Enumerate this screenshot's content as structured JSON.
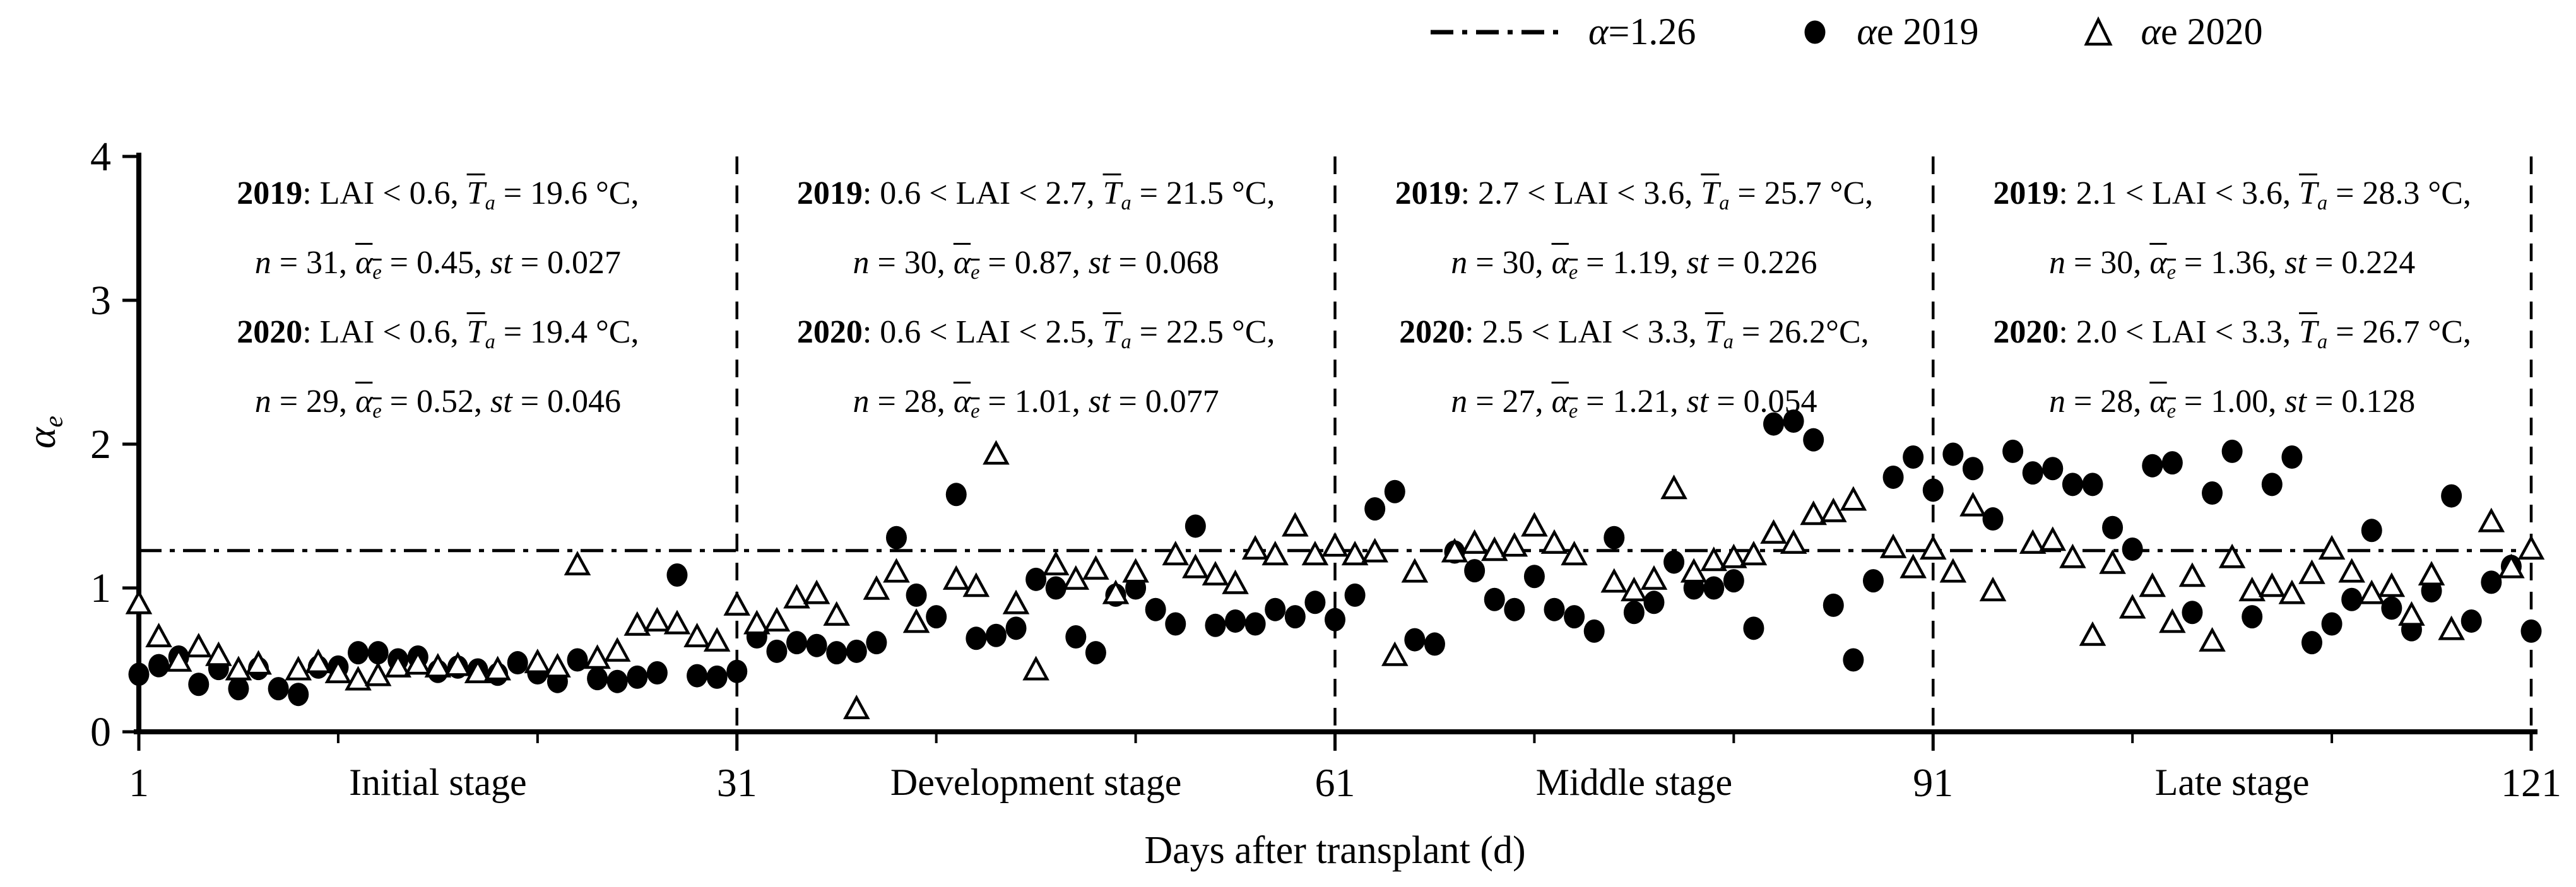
{
  "legend": {
    "items": [
      {
        "label": "α=1.26",
        "marker": "dash-dot-line"
      },
      {
        "label": "αe 2019",
        "marker": "filled-circle"
      },
      {
        "label": "αe 2020",
        "marker": "open-triangle"
      }
    ]
  },
  "axis": {
    "y_label_main": "α",
    "y_label_sub": "e",
    "x_label": "Days after transplant (d)"
  },
  "symbols": {
    "n": "n",
    "st": "st",
    "T": "T",
    "T_sub": "a",
    "alpha": "α",
    "alpha_sub": "e"
  },
  "annotations": [
    {
      "stage_label": "Initial stage",
      "y2019": {
        "year": "2019",
        "cond": "LAI < 0.6,",
        "ta": "19.6 °C,",
        "n": "31",
        "ae": "0.45",
        "st": "0.027"
      },
      "y2020": {
        "year": "2020",
        "cond": "LAI < 0.6,",
        "ta": "19.4 °C,",
        "n": "29",
        "ae": "0.52",
        "st": "0.046"
      }
    },
    {
      "stage_label": "Development stage",
      "y2019": {
        "year": "2019",
        "cond": "0.6 < LAI < 2.7,",
        "ta": "21.5 °C,",
        "n": "30",
        "ae": "0.87",
        "st": "0.068"
      },
      "y2020": {
        "year": "2020",
        "cond": "0.6 < LAI < 2.5,",
        "ta": "22.5 °C,",
        "n": "28",
        "ae": "1.01",
        "st": "0.077"
      }
    },
    {
      "stage_label": "Middle stage",
      "y2019": {
        "year": "2019",
        "cond": "2.7 < LAI < 3.6,",
        "ta": "25.7 °C,",
        "n": "30",
        "ae": "1.19",
        "st": "0.226"
      },
      "y2020": {
        "year": "2020",
        "cond": "2.5 < LAI < 3.3,",
        "ta": "26.2°C,",
        "n": "27",
        "ae": "1.21",
        "st": "0.054"
      }
    },
    {
      "stage_label": "Late stage",
      "y2019": {
        "year": "2019",
        "cond": "2.1 < LAI < 3.6,",
        "ta": "28.3 °C,",
        "n": "30",
        "ae": "1.36",
        "st": "0.224"
      },
      "y2020": {
        "year": "2020",
        "cond": "2.0 < LAI < 3.3,",
        "ta": "26.7 °C,",
        "n": "28",
        "ae": "1.00",
        "st": "0.128"
      }
    }
  ],
  "chart_data": {
    "type": "scatter",
    "title": "",
    "xlabel": "Days after transplant (d)",
    "ylabel": "αe",
    "xlim": [
      1,
      121
    ],
    "ylim": [
      0,
      4
    ],
    "x_ticks": [
      1,
      31,
      61,
      91,
      121
    ],
    "x_minor_ticks": [
      11,
      21,
      41,
      51,
      71,
      81,
      101,
      111
    ],
    "y_ticks": [
      0,
      1,
      2,
      3,
      4
    ],
    "grid": false,
    "legend_position": "top-right",
    "ref_line": {
      "value": 1.26,
      "style": "dash-dot",
      "label": "α=1.26"
    },
    "stage_boundaries": [
      31,
      61,
      91,
      121
    ],
    "stages": [
      {
        "name": "Initial stage",
        "center_day": 16
      },
      {
        "name": "Development stage",
        "center_day": 46
      },
      {
        "name": "Middle stage",
        "center_day": 76
      },
      {
        "name": "Late stage",
        "center_day": 106
      }
    ],
    "series": [
      {
        "name": "αe 2019",
        "marker": "filled-circle",
        "points": [
          [
            1,
            0.4
          ],
          [
            2,
            0.46
          ],
          [
            3,
            0.52
          ],
          [
            4,
            0.33
          ],
          [
            5,
            0.44
          ],
          [
            6,
            0.3
          ],
          [
            7,
            0.44
          ],
          [
            8,
            0.3
          ],
          [
            9,
            0.26
          ],
          [
            10,
            0.45
          ],
          [
            11,
            0.45
          ],
          [
            12,
            0.55
          ],
          [
            13,
            0.55
          ],
          [
            14,
            0.5
          ],
          [
            15,
            0.52
          ],
          [
            16,
            0.42
          ],
          [
            17,
            0.45
          ],
          [
            18,
            0.43
          ],
          [
            19,
            0.4
          ],
          [
            20,
            0.48
          ],
          [
            21,
            0.41
          ],
          [
            22,
            0.35
          ],
          [
            23,
            0.5
          ],
          [
            24,
            0.37
          ],
          [
            25,
            0.35
          ],
          [
            26,
            0.38
          ],
          [
            27,
            0.41
          ],
          [
            28,
            1.09
          ],
          [
            29,
            0.39
          ],
          [
            30,
            0.38
          ],
          [
            31,
            0.42
          ],
          [
            32,
            0.66
          ],
          [
            33,
            0.56
          ],
          [
            34,
            0.62
          ],
          [
            35,
            0.6
          ],
          [
            36,
            0.55
          ],
          [
            37,
            0.56
          ],
          [
            38,
            0.62
          ],
          [
            39,
            1.35
          ],
          [
            40,
            0.95
          ],
          [
            41,
            0.8
          ],
          [
            42,
            1.65
          ],
          [
            43,
            0.65
          ],
          [
            44,
            0.67
          ],
          [
            45,
            0.72
          ],
          [
            46,
            1.06
          ],
          [
            47,
            1.0
          ],
          [
            48,
            0.66
          ],
          [
            49,
            0.55
          ],
          [
            50,
            0.95
          ],
          [
            51,
            1.0
          ],
          [
            52,
            0.85
          ],
          [
            53,
            0.75
          ],
          [
            54,
            1.43
          ],
          [
            55,
            0.74
          ],
          [
            56,
            0.77
          ],
          [
            57,
            0.75
          ],
          [
            58,
            0.85
          ],
          [
            59,
            0.8
          ],
          [
            60,
            0.9
          ],
          [
            61,
            0.78
          ],
          [
            62,
            0.95
          ],
          [
            63,
            1.55
          ],
          [
            64,
            1.67
          ],
          [
            65,
            0.64
          ],
          [
            66,
            0.61
          ],
          [
            67,
            1.25
          ],
          [
            68,
            1.12
          ],
          [
            69,
            0.92
          ],
          [
            70,
            0.85
          ],
          [
            71,
            1.08
          ],
          [
            72,
            0.85
          ],
          [
            73,
            0.8
          ],
          [
            74,
            0.7
          ],
          [
            75,
            1.35
          ],
          [
            76,
            0.83
          ],
          [
            77,
            0.9
          ],
          [
            78,
            1.18
          ],
          [
            79,
            1.0
          ],
          [
            80,
            1.0
          ],
          [
            81,
            1.05
          ],
          [
            82,
            0.72
          ],
          [
            83,
            2.14
          ],
          [
            84,
            2.16
          ],
          [
            85,
            2.03
          ],
          [
            86,
            0.88
          ],
          [
            87,
            0.5
          ],
          [
            88,
            1.05
          ],
          [
            89,
            1.77
          ],
          [
            90,
            1.91
          ],
          [
            91,
            1.68
          ],
          [
            92,
            1.93
          ],
          [
            93,
            1.83
          ],
          [
            94,
            1.48
          ],
          [
            95,
            1.95
          ],
          [
            96,
            1.8
          ],
          [
            97,
            1.83
          ],
          [
            98,
            1.72
          ],
          [
            99,
            1.72
          ],
          [
            100,
            1.42
          ],
          [
            101,
            1.27
          ],
          [
            102,
            1.85
          ],
          [
            103,
            1.87
          ],
          [
            104,
            0.83
          ],
          [
            105,
            1.66
          ],
          [
            106,
            1.95
          ],
          [
            107,
            0.8
          ],
          [
            108,
            1.72
          ],
          [
            109,
            1.91
          ],
          [
            110,
            0.62
          ],
          [
            111,
            0.75
          ],
          [
            112,
            0.92
          ],
          [
            113,
            1.4
          ],
          [
            114,
            0.86
          ],
          [
            115,
            0.71
          ],
          [
            116,
            0.98
          ],
          [
            117,
            1.64
          ],
          [
            118,
            0.77
          ],
          [
            119,
            1.04
          ],
          [
            120,
            1.15
          ],
          [
            121,
            0.7
          ]
        ]
      },
      {
        "name": "αe 2020",
        "marker": "open-triangle",
        "points": [
          [
            1,
            0.88
          ],
          [
            2,
            0.65
          ],
          [
            3,
            0.48
          ],
          [
            4,
            0.58
          ],
          [
            5,
            0.52
          ],
          [
            6,
            0.42
          ],
          [
            7,
            0.46
          ],
          [
            9,
            0.42
          ],
          [
            10,
            0.47
          ],
          [
            11,
            0.4
          ],
          [
            12,
            0.35
          ],
          [
            13,
            0.38
          ],
          [
            14,
            0.44
          ],
          [
            15,
            0.46
          ],
          [
            16,
            0.44
          ],
          [
            17,
            0.45
          ],
          [
            18,
            0.4
          ],
          [
            19,
            0.42
          ],
          [
            21,
            0.47
          ],
          [
            22,
            0.44
          ],
          [
            23,
            1.15
          ],
          [
            24,
            0.5
          ],
          [
            25,
            0.55
          ],
          [
            26,
            0.73
          ],
          [
            27,
            0.76
          ],
          [
            28,
            0.74
          ],
          [
            29,
            0.65
          ],
          [
            30,
            0.62
          ],
          [
            31,
            0.87
          ],
          [
            32,
            0.74
          ],
          [
            33,
            0.76
          ],
          [
            34,
            0.92
          ],
          [
            35,
            0.95
          ],
          [
            36,
            0.8
          ],
          [
            37,
            0.15
          ],
          [
            38,
            0.98
          ],
          [
            39,
            1.1
          ],
          [
            40,
            0.75
          ],
          [
            42,
            1.05
          ],
          [
            43,
            1.0
          ],
          [
            44,
            1.92
          ],
          [
            45,
            0.88
          ],
          [
            46,
            0.42
          ],
          [
            47,
            1.15
          ],
          [
            48,
            1.05
          ],
          [
            49,
            1.12
          ],
          [
            50,
            0.95
          ],
          [
            51,
            1.1
          ],
          [
            53,
            1.22
          ],
          [
            54,
            1.13
          ],
          [
            55,
            1.08
          ],
          [
            56,
            1.02
          ],
          [
            57,
            1.26
          ],
          [
            58,
            1.22
          ],
          [
            59,
            1.42
          ],
          [
            60,
            1.22
          ],
          [
            61,
            1.28
          ],
          [
            62,
            1.22
          ],
          [
            63,
            1.24
          ],
          [
            64,
            0.52
          ],
          [
            65,
            1.1
          ],
          [
            67,
            1.24
          ],
          [
            68,
            1.3
          ],
          [
            69,
            1.25
          ],
          [
            70,
            1.28
          ],
          [
            71,
            1.42
          ],
          [
            72,
            1.3
          ],
          [
            73,
            1.22
          ],
          [
            75,
            1.03
          ],
          [
            76,
            0.97
          ],
          [
            77,
            1.05
          ],
          [
            78,
            1.68
          ],
          [
            79,
            1.1
          ],
          [
            80,
            1.18
          ],
          [
            81,
            1.2
          ],
          [
            82,
            1.22
          ],
          [
            83,
            1.37
          ],
          [
            84,
            1.3
          ],
          [
            85,
            1.5
          ],
          [
            86,
            1.52
          ],
          [
            87,
            1.6
          ],
          [
            89,
            1.27
          ],
          [
            90,
            1.13
          ],
          [
            91,
            1.26
          ],
          [
            92,
            1.1
          ],
          [
            93,
            1.56
          ],
          [
            94,
            0.97
          ],
          [
            96,
            1.3
          ],
          [
            97,
            1.32
          ],
          [
            98,
            1.2
          ],
          [
            99,
            0.66
          ],
          [
            100,
            1.16
          ],
          [
            101,
            0.85
          ],
          [
            102,
            1.0
          ],
          [
            103,
            0.75
          ],
          [
            104,
            1.07
          ],
          [
            105,
            0.62
          ],
          [
            106,
            1.2
          ],
          [
            107,
            0.97
          ],
          [
            108,
            1.0
          ],
          [
            109,
            0.95
          ],
          [
            110,
            1.09
          ],
          [
            111,
            1.26
          ],
          [
            112,
            1.1
          ],
          [
            113,
            0.95
          ],
          [
            114,
            1.0
          ],
          [
            115,
            0.8
          ],
          [
            116,
            1.08
          ],
          [
            117,
            0.7
          ],
          [
            119,
            1.45
          ],
          [
            120,
            1.13
          ],
          [
            121,
            1.26
          ]
        ]
      }
    ]
  }
}
